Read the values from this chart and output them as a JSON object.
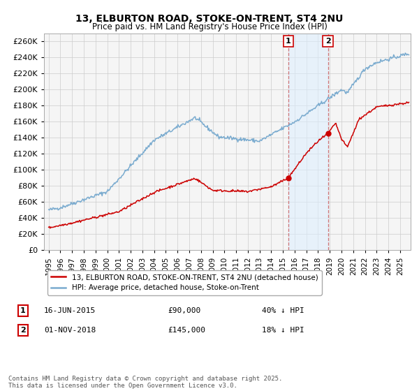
{
  "title": "13, ELBURTON ROAD, STOKE-ON-TRENT, ST4 2NU",
  "subtitle": "Price paid vs. HM Land Registry's House Price Index (HPI)",
  "ylabel_ticks": [
    0,
    20000,
    40000,
    60000,
    80000,
    100000,
    120000,
    140000,
    160000,
    180000,
    200000,
    220000,
    240000,
    260000
  ],
  "ylim": [
    0,
    270000
  ],
  "sale1_date": "16-JUN-2015",
  "sale1_price": 90000,
  "sale1_pct": "40%",
  "sale2_date": "01-NOV-2018",
  "sale2_price": 145000,
  "sale2_pct": "18%",
  "sale1_x": 2015.46,
  "sale2_x": 2018.84,
  "legend1": "13, ELBURTON ROAD, STOKE-ON-TRENT, ST4 2NU (detached house)",
  "legend2": "HPI: Average price, detached house, Stoke-on-Trent",
  "footnote": "Contains HM Land Registry data © Crown copyright and database right 2025.\nThis data is licensed under the Open Government Licence v3.0.",
  "red_color": "#cc0000",
  "blue_color": "#7aabcf",
  "shade_color": "#ddeeff",
  "grid_color": "#cccccc",
  "background_color": "#f5f5f5",
  "xlim_left": 1994.6,
  "xlim_right": 2025.9
}
